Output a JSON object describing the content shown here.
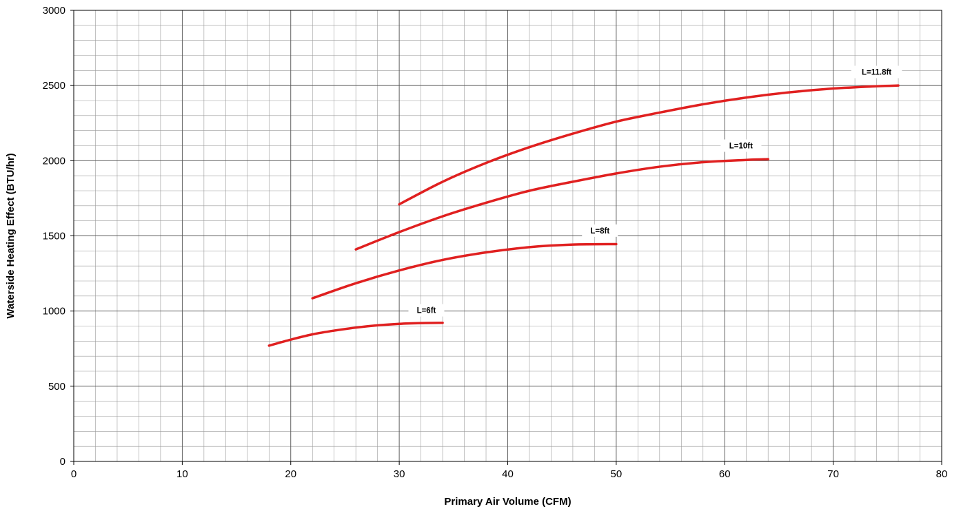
{
  "chart_data": {
    "type": "line",
    "title": "",
    "xlabel": "Primary Air Volume (CFM)",
    "ylabel": "Waterside Heating Effect (BTU/hr)",
    "xlim": [
      0,
      80
    ],
    "ylim": [
      0,
      3000
    ],
    "x_ticks": [
      0,
      10,
      20,
      30,
      40,
      50,
      60,
      70,
      80
    ],
    "y_ticks": [
      0,
      500,
      1000,
      1500,
      2000,
      2500,
      3000
    ],
    "grid": true,
    "minor_grid": {
      "x_step": 2,
      "y_step": 100
    },
    "line_color": "#e02020",
    "series": [
      {
        "name": "L=6ft",
        "x": [
          18,
          20,
          22,
          24,
          26,
          28,
          30,
          32,
          34
        ],
        "y": [
          770,
          810,
          845,
          870,
          890,
          905,
          915,
          920,
          922
        ]
      },
      {
        "name": "L=8ft",
        "x": [
          22,
          26,
          30,
          34,
          38,
          42,
          46,
          50
        ],
        "y": [
          1085,
          1185,
          1270,
          1340,
          1390,
          1425,
          1442,
          1445
        ]
      },
      {
        "name": "L=10ft",
        "x": [
          26,
          30,
          34,
          38,
          42,
          46,
          50,
          54,
          58,
          62,
          64
        ],
        "y": [
          1410,
          1525,
          1630,
          1720,
          1800,
          1860,
          1915,
          1960,
          1990,
          2005,
          2010
        ]
      },
      {
        "name": "L=11.8ft",
        "x": [
          30,
          34,
          38,
          42,
          46,
          50,
          54,
          58,
          62,
          66,
          70,
          74,
          76
        ],
        "y": [
          1710,
          1860,
          1985,
          2090,
          2180,
          2260,
          2320,
          2375,
          2420,
          2455,
          2480,
          2495,
          2500
        ]
      }
    ],
    "label_anchors": [
      {
        "x": 32.5,
        "y": 1005
      },
      {
        "x": 48.5,
        "y": 1535
      },
      {
        "x": 61.5,
        "y": 2100
      },
      {
        "x": 74,
        "y": 2590
      }
    ]
  }
}
